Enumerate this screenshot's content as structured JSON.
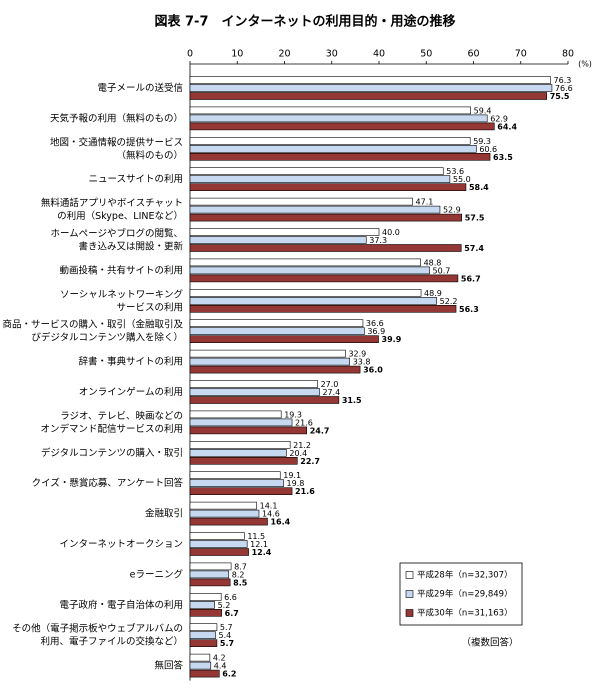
{
  "chart_data": {
    "type": "bar",
    "orientation": "horizontal",
    "title": "図表 7-7　インターネットの利用目的・用途の推移",
    "unit": "(%)",
    "note": "（複数回答）",
    "xlim": [
      0,
      80
    ],
    "xticks": [
      0,
      10,
      20,
      30,
      40,
      50,
      60,
      70,
      80
    ],
    "legend": "lower right",
    "categories": [
      [
        "電子メールの送受信"
      ],
      [
        "天気予報の利用（無料のもの）"
      ],
      [
        "地図・交通情報の提供サービス",
        "（無料のもの）"
      ],
      [
        "ニュースサイトの利用"
      ],
      [
        "無料通話アプリやボイスチャット",
        "の利用（Skype、LINEなど）"
      ],
      [
        "ホームページやブログの閲覧、",
        "書き込み又は開設・更新"
      ],
      [
        "動画投稿・共有サイトの利用"
      ],
      [
        "ソーシャルネットワーキング",
        "サービスの利用"
      ],
      [
        "商品・サービスの購入・取引（金融取引及",
        "びデジタルコンテンツ購入を除く）"
      ],
      [
        "辞書・事典サイトの利用"
      ],
      [
        "オンラインゲームの利用"
      ],
      [
        "ラジオ、テレビ、映画などの",
        "オンデマンド配信サービスの利用"
      ],
      [
        "デジタルコンテンツの購入・取引"
      ],
      [
        "クイズ・懸賞応募、アンケート回答"
      ],
      [
        "金融取引"
      ],
      [
        "インターネットオークション"
      ],
      [
        "eラーニング"
      ],
      [
        "電子政府・電子自治体の利用"
      ],
      [
        "その他（電子掲示板やウェブアルバムの",
        "利用、電子ファイルの交換など）"
      ],
      [
        "無回答"
      ]
    ],
    "series": [
      {
        "name": "平成28年（n=32,307）",
        "color": "#ffffff",
        "values": [
          76.3,
          59.4,
          59.3,
          53.6,
          47.1,
          40.0,
          48.8,
          48.9,
          36.6,
          32.9,
          27.0,
          19.3,
          21.2,
          19.1,
          14.1,
          11.5,
          8.7,
          6.6,
          5.7,
          4.2
        ],
        "value_labels": [
          "76.3",
          "59.4",
          "59.3",
          "53.6",
          "47.1",
          "40.0",
          "48.8",
          "48.9",
          "36.6",
          "32.9",
          "27.0",
          "19.3",
          "21.2",
          "19.1",
          "14.1",
          "11.5",
          "8.7",
          "6.6",
          "5.7",
          "4.2"
        ]
      },
      {
        "name": "平成29年（n=29,849）",
        "color": "#c6d9f1",
        "values": [
          76.6,
          62.9,
          60.6,
          55.0,
          52.9,
          37.3,
          50.7,
          52.2,
          36.9,
          33.8,
          27.4,
          21.6,
          20.4,
          19.8,
          14.6,
          12.1,
          8.2,
          5.2,
          5.4,
          4.4
        ],
        "value_labels": [
          "76.6",
          "62.9",
          "60.6",
          "55.0",
          "52.9",
          "37.3",
          "50.7",
          "52.2",
          "36.9",
          "33.8",
          "27.4",
          "21.6",
          "20.4",
          "19.8",
          "14.6",
          "12.1",
          "8.2",
          "5.2",
          "5.4",
          "4.4"
        ]
      },
      {
        "name": "平成30年（n=31,163）",
        "color": "#953735",
        "values": [
          75.5,
          64.4,
          63.5,
          58.4,
          57.5,
          57.4,
          56.7,
          56.3,
          39.9,
          36.0,
          31.5,
          24.7,
          22.7,
          21.6,
          16.4,
          12.4,
          8.5,
          6.7,
          5.7,
          6.2
        ],
        "value_labels": [
          "75.5",
          "64.4",
          "63.5",
          "58.4",
          "57.5",
          "57.4",
          "56.7",
          "56.3",
          "39.9",
          "36.0",
          "31.5",
          "24.7",
          "22.7",
          "21.6",
          "16.4",
          "12.4",
          "8.5",
          "6.7",
          "5.7",
          "6.2"
        ]
      }
    ]
  }
}
